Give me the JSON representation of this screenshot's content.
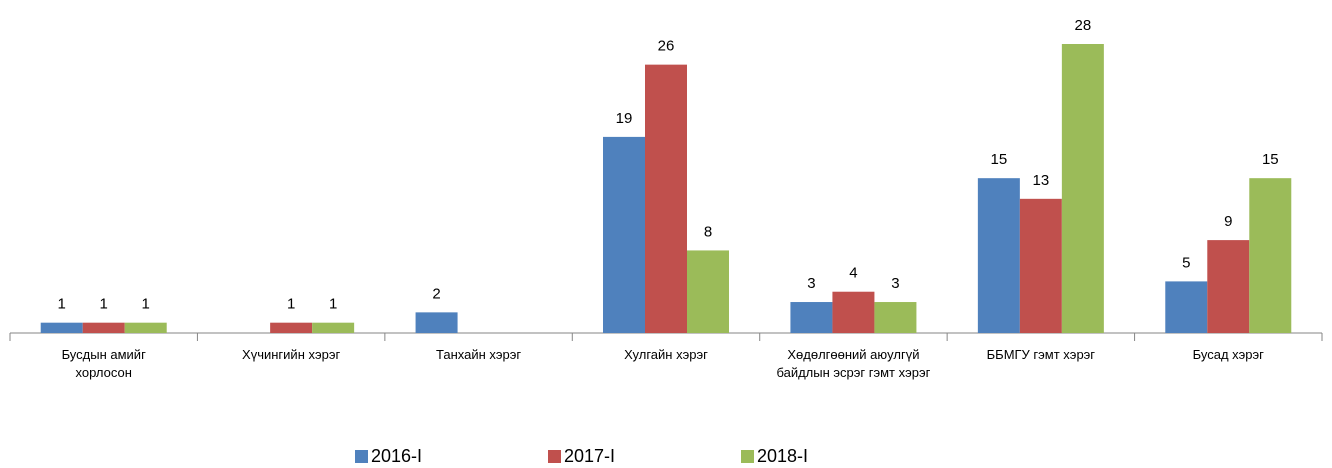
{
  "chart_data": {
    "type": "bar",
    "categories": [
      "Бусдын амийг хорлосон",
      "Хүчингийн хэрэг",
      "Танхайн хэрэг",
      "Хулгайн хэрэг",
      "Хөдөлгөөний аюулгүй байдлын эсрэг гэмт хэрэг",
      "ББМГУ гэмт хэрэг",
      "Бусад хэрэг"
    ],
    "series": [
      {
        "name": "2016-I",
        "color": "#4f81bd",
        "values": [
          1,
          null,
          2,
          19,
          3,
          15,
          5
        ]
      },
      {
        "name": "2017-I",
        "color": "#c0504d",
        "values": [
          1,
          1,
          null,
          26,
          4,
          13,
          9
        ]
      },
      {
        "name": "2018-I",
        "color": "#9bbb59",
        "values": [
          1,
          1,
          null,
          8,
          3,
          28,
          15
        ]
      }
    ],
    "legend": "bottom"
  }
}
